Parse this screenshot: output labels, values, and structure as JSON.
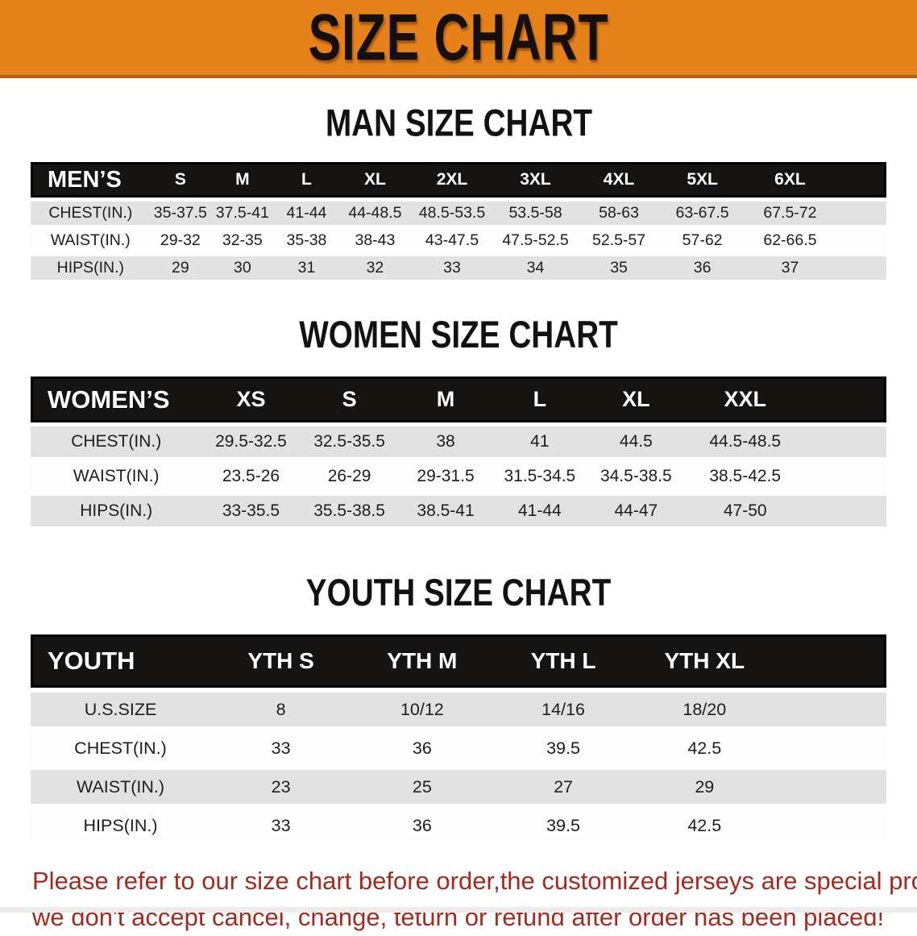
{
  "banner": {
    "title": "SIZE CHART",
    "bg_color": "#E7821B",
    "text_color": "#15100D"
  },
  "colors": {
    "table_header_bg": "#161412",
    "row_stripe_gray": "#E2E2E2",
    "row_stripe_white": "#FDFDFD",
    "disclaimer_red": "#A6291E"
  },
  "men": {
    "heading": "MAN SIZE CHART",
    "table": {
      "label": "MEN’S",
      "columns": [
        "S",
        "M",
        "L",
        "XL",
        "2XL",
        "3XL",
        "4XL",
        "5XL",
        "6XL"
      ],
      "rows": [
        {
          "label": "CHEST(IN.)",
          "values": [
            "35-37.5",
            "37.5-41",
            "41-44",
            "44-48.5",
            "48.5-53.5",
            "53.5-58",
            "58-63",
            "63-67.5",
            "67.5-72"
          ]
        },
        {
          "label": "WAIST(IN.)",
          "values": [
            "29-32",
            "32-35",
            "35-38",
            "38-43",
            "43-47.5",
            "47.5-52.5",
            "52.5-57",
            "57-62",
            "62-66.5"
          ]
        },
        {
          "label": "HIPS(IN.)",
          "values": [
            "29",
            "30",
            "31",
            "32",
            "33",
            "34",
            "35",
            "36",
            "37"
          ]
        }
      ]
    }
  },
  "women": {
    "heading": "WOMEN SIZE CHART",
    "table": {
      "label": "WOMEN’S",
      "columns": [
        "XS",
        "S",
        "M",
        "L",
        "XL",
        "XXL"
      ],
      "rows": [
        {
          "label": "CHEST(IN.)",
          "values": [
            "29.5-32.5",
            "32.5-35.5",
            "38",
            "41",
            "44.5",
            "44.5-48.5"
          ]
        },
        {
          "label": "WAIST(IN.)",
          "values": [
            "23.5-26",
            "26-29",
            "29-31.5",
            "31.5-34.5",
            "34.5-38.5",
            "38.5-42.5"
          ]
        },
        {
          "label": "HIPS(IN.)",
          "values": [
            "33-35.5",
            "35.5-38.5",
            "38.5-41",
            "41-44",
            "44-47",
            "47-50"
          ]
        }
      ]
    }
  },
  "youth": {
    "heading": "YOUTH SIZE CHART",
    "table": {
      "label": "YOUTH",
      "columns": [
        "YTH S",
        "YTH M",
        "YTH L",
        "YTH XL"
      ],
      "rows": [
        {
          "label": "U.S.SIZE",
          "values": [
            "8",
            "10/12",
            "14/16",
            "18/20"
          ]
        },
        {
          "label": "CHEST(IN.)",
          "values": [
            "33",
            "36",
            "39.5",
            "42.5"
          ]
        },
        {
          "label": "WAIST(IN.)",
          "values": [
            "23",
            "25",
            "27",
            "29"
          ]
        },
        {
          "label": "HIPS(IN.)",
          "values": [
            "33",
            "36",
            "39.5",
            "42.5"
          ]
        }
      ]
    }
  },
  "footer": {
    "line1": "Please refer to our size chart before order,the customized jerseys are special products,",
    "line2": "we don't accept cancel, change, teturn or refund after order has been placed!"
  }
}
